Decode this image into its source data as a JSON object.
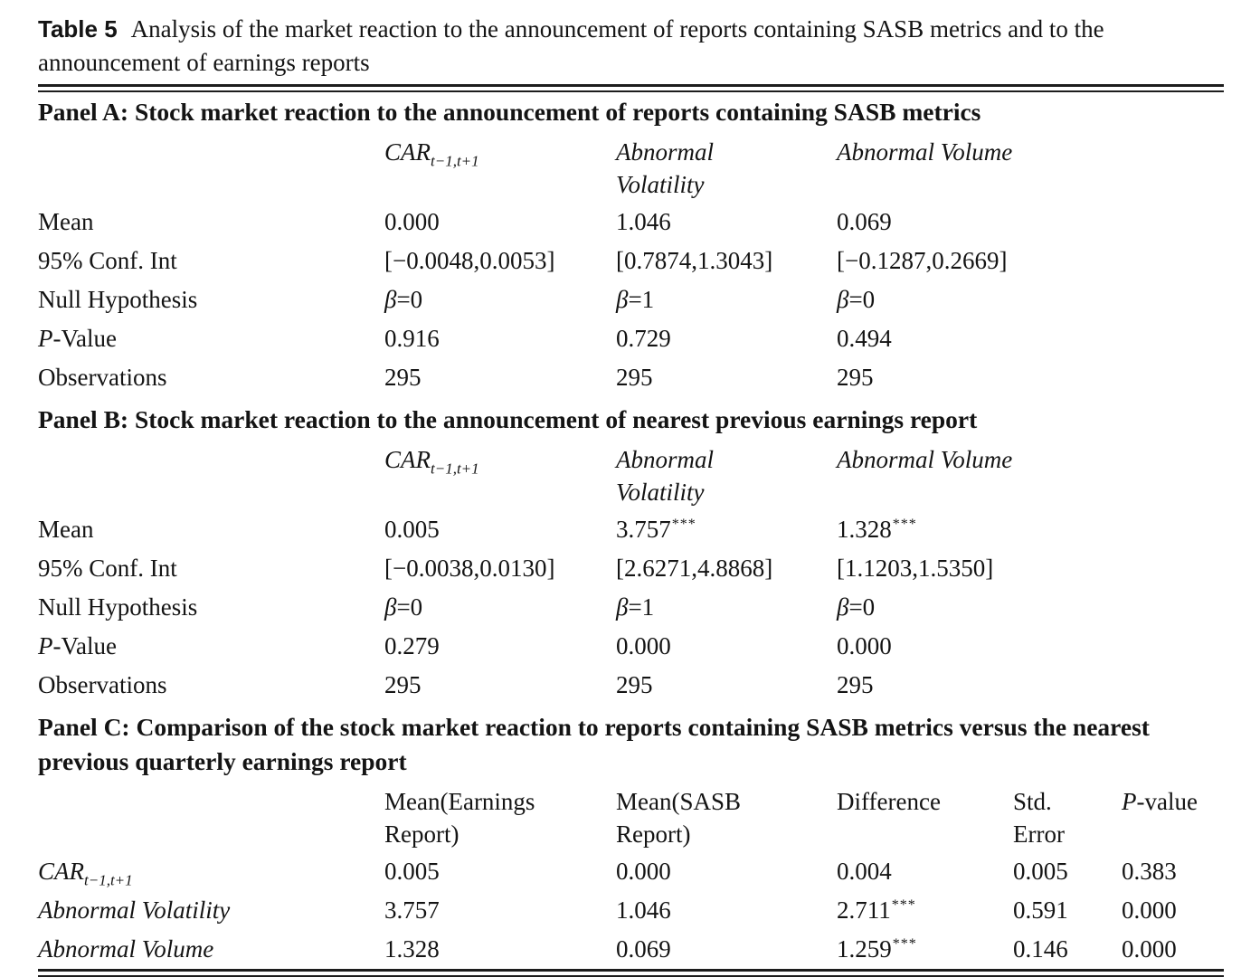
{
  "title": {
    "label": "Table 5",
    "text": "Analysis of the market reaction to the announcement of reports containing SASB metrics and to the announcement of earnings reports"
  },
  "symbols": {
    "car": "CAR",
    "car_sub": "t−1,t+1",
    "beta": "β",
    "p": "P"
  },
  "panelA": {
    "heading": "Panel A: Stock market reaction to the announcement of reports containing SASB metrics",
    "columns": {
      "volatility": "Abnormal Volatility",
      "volume": "Abnormal Volume"
    },
    "rows": {
      "mean": {
        "label": "Mean",
        "values": [
          "0.000",
          "1.046",
          "0.069"
        ]
      },
      "ci": {
        "label": "95% Conf. Int",
        "values": [
          "[−0.0048,0.0053]",
          "[0.7874,1.3043]",
          "[−0.1287,0.2669]"
        ]
      },
      "null": {
        "label": "Null Hypothesis",
        "values": [
          "=0",
          "=1",
          "=0"
        ]
      },
      "pvalue": {
        "label_rest": "-Value",
        "values": [
          "0.916",
          "0.729",
          "0.494"
        ]
      },
      "obs": {
        "label": "Observations",
        "values": [
          "295",
          "295",
          "295"
        ]
      }
    }
  },
  "panelB": {
    "heading": "Panel B: Stock market reaction to the announcement of nearest previous earnings report",
    "columns": {
      "volatility": "Abnormal Volatility",
      "volume": "Abnormal Volume"
    },
    "rows": {
      "mean": {
        "label": "Mean",
        "values": [
          "0.005",
          "3.757",
          "1.328"
        ],
        "stars": [
          "",
          "***",
          "***"
        ]
      },
      "ci": {
        "label": "95% Conf. Int",
        "values": [
          "[−0.0038,0.0130]",
          "[2.6271,4.8868]",
          "[1.1203,1.5350]"
        ]
      },
      "null": {
        "label": "Null Hypothesis",
        "values": [
          "=0",
          "=1",
          "=0"
        ]
      },
      "pvalue": {
        "label_rest": "-Value",
        "values": [
          "0.279",
          "0.000",
          "0.000"
        ]
      },
      "obs": {
        "label": "Observations",
        "values": [
          "295",
          "295",
          "295"
        ]
      }
    }
  },
  "panelC": {
    "heading": "Panel C: Comparison of the stock market reaction to reports containing SASB metrics versus the nearest previous quarterly earnings report",
    "columns": {
      "mean_earnings": "Mean(Earnings Report)",
      "mean_sasb": "Mean(SASB Report)",
      "difference": "Difference",
      "std_error": "Std. Error",
      "p_rest": "-value"
    },
    "rows": {
      "car": {
        "values": [
          "0.005",
          "0.000",
          "0.004",
          "0.005",
          "0.383"
        ],
        "diff_stars": ""
      },
      "volatility": {
        "label": "Abnormal Volatility",
        "values": [
          "3.757",
          "1.046",
          "2.711",
          "0.591",
          "0.000"
        ],
        "diff_stars": "***"
      },
      "volume": {
        "label": "Abnormal Volume",
        "values": [
          "1.328",
          "0.069",
          "1.259",
          "0.146",
          "0.000"
        ],
        "diff_stars": "***"
      }
    }
  }
}
